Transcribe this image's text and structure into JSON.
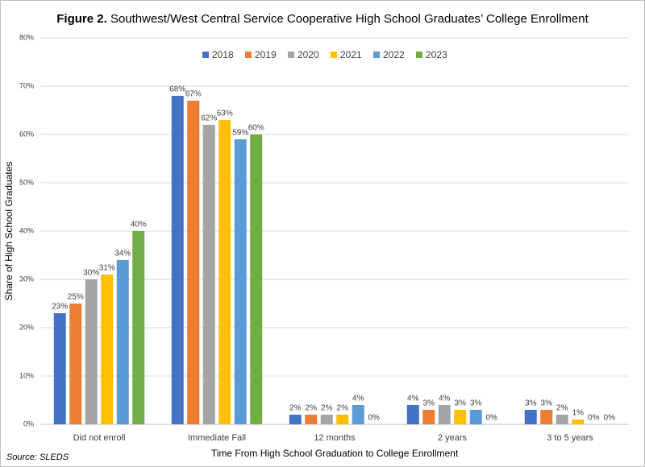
{
  "chart_data": {
    "type": "bar",
    "title_label": "Figure 2.",
    "title": "Southwest/West Central Service Cooperative High School Graduates’ College Enrollment",
    "x_label": "Time From High School Graduation to College Enrollment",
    "y_label": "Share of High School Graduates",
    "source": "Source: SLEDS",
    "categories": [
      "Did not enroll",
      "Immediate Fall",
      "12 months",
      "2 years",
      "3 to 5 years"
    ],
    "series": [
      {
        "name": "2018",
        "color": "#4472c4",
        "values": [
          23,
          68,
          2,
          4,
          3
        ],
        "value_labels": [
          "23%",
          "68%",
          "2%",
          "4%",
          "3%"
        ]
      },
      {
        "name": "2019",
        "color": "#ed7d31",
        "values": [
          25,
          67,
          2,
          3,
          3
        ],
        "value_labels": [
          "25%",
          "67%",
          "2%",
          "3%",
          "3%"
        ]
      },
      {
        "name": "2020",
        "color": "#a5a5a5",
        "values": [
          30,
          62,
          2,
          4,
          2
        ],
        "value_labels": [
          "30%",
          "62%",
          "2%",
          "4%",
          "2%"
        ]
      },
      {
        "name": "2021",
        "color": "#ffc000",
        "values": [
          31,
          63,
          2,
          3,
          1
        ],
        "value_labels": [
          "31%",
          "63%",
          "2%",
          "3%",
          "1%"
        ]
      },
      {
        "name": "2022",
        "color": "#5b9bd5",
        "values": [
          34,
          59,
          4,
          3,
          0
        ],
        "value_labels": [
          "34%",
          "59%",
          "4%",
          "3%",
          "0%"
        ]
      },
      {
        "name": "2023",
        "color": "#70ad47",
        "values": [
          40,
          60,
          0,
          0,
          0
        ],
        "value_labels": [
          "40%",
          "60%",
          "0%",
          "0%",
          "0%"
        ]
      }
    ],
    "ylim": [
      0,
      80
    ],
    "yticks": [
      {
        "value": 0,
        "label": "0%"
      },
      {
        "value": 10,
        "label": "10%"
      },
      {
        "value": 20,
        "label": "20%"
      },
      {
        "value": 30,
        "label": "30%"
      },
      {
        "value": 40,
        "label": "40%"
      },
      {
        "value": 50,
        "label": "50%"
      },
      {
        "value": 60,
        "label": "60%"
      },
      {
        "value": 70,
        "label": "70%"
      },
      {
        "value": 80,
        "label": "80%"
      }
    ],
    "grid": true,
    "legend": "top"
  }
}
